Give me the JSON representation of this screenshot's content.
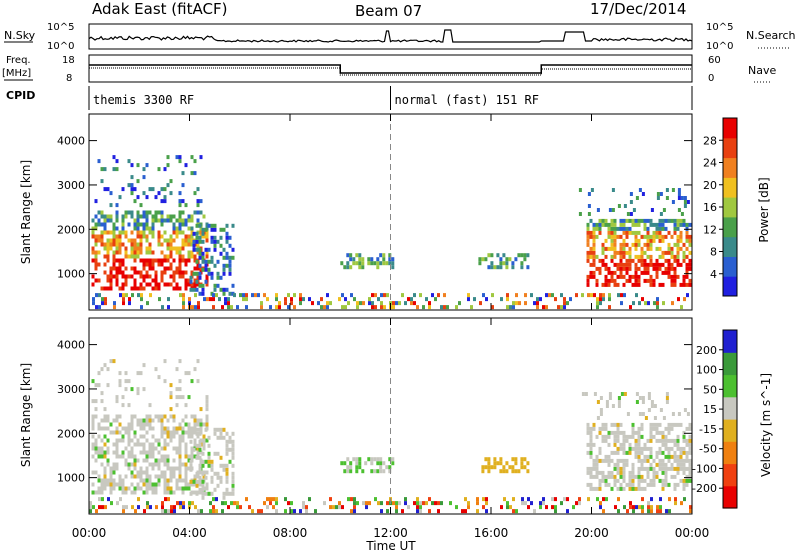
{
  "header": {
    "station": "Adak East (fitACF)",
    "beam": "Beam 07",
    "date": "17/Dec/2014"
  },
  "strip_labels": {
    "nsky": "N.Sky",
    "nsearch": "N.Search",
    "freq_line1": "Freq.",
    "freq_line2": "[MHz]",
    "nave": "Nave",
    "cpid": "CPID",
    "nsky_ticks": [
      "10^5",
      "10^0"
    ],
    "nsearch_ticks": [
      "10^5",
      "10^0"
    ],
    "freq_ticks": [
      "18",
      "8"
    ],
    "nave_ticks": [
      "60",
      "0"
    ]
  },
  "cpid_segments": [
    {
      "label": "themis 3300 RF",
      "start": 0,
      "end": 12
    },
    {
      "label": "normal (fast) 151 RF",
      "start": 12,
      "end": 24
    }
  ],
  "colors": {
    "power": [
      "#2020e0",
      "#2a5fd0",
      "#3a8a8a",
      "#4aa04a",
      "#a0c840",
      "#f0c020",
      "#f08020",
      "#e84010",
      "#e80000"
    ],
    "velocity": [
      "#2020d0",
      "#3a9a3a",
      "#4cc030",
      "#c8c8c0",
      "#e0b020",
      "#f08010",
      "#f04010",
      "#e80000"
    ]
  },
  "chart_data": [
    {
      "type": "heatmap",
      "name_key": "power",
      "xlabel": "",
      "ylabel": "Slant Range [km]",
      "x_range_hours": [
        0,
        24
      ],
      "ylim": [
        180,
        4600
      ],
      "y_ticks": [
        "1000",
        "2000",
        "3000",
        "4000"
      ],
      "x_tick_hours": [
        0,
        4,
        8,
        12,
        16,
        20,
        24
      ],
      "colorbar": {
        "label": "Power [dB]",
        "ticks": [
          "4",
          "8",
          "12",
          "16",
          "20",
          "24",
          "28"
        ],
        "range": [
          0,
          30
        ]
      }
    },
    {
      "type": "heatmap",
      "name_key": "velocity",
      "xlabel": "Time UT",
      "ylabel": "Slant Range [km]",
      "x_range_hours": [
        0,
        24
      ],
      "ylim": [
        180,
        4600
      ],
      "y_ticks": [
        "1000",
        "2000",
        "3000",
        "4000"
      ],
      "x_tick_labels": [
        "00:00",
        "04:00",
        "08:00",
        "12:00",
        "16:00",
        "20:00",
        "00:00"
      ],
      "x_tick_hours": [
        0,
        4,
        8,
        12,
        16,
        20,
        24
      ],
      "colorbar": {
        "label": "Velocity [m s^-1]",
        "ticks": [
          "200",
          "100",
          "50",
          "15",
          "-15",
          "-50",
          "-100",
          "-200"
        ],
        "range": [
          -250,
          250
        ]
      }
    }
  ]
}
